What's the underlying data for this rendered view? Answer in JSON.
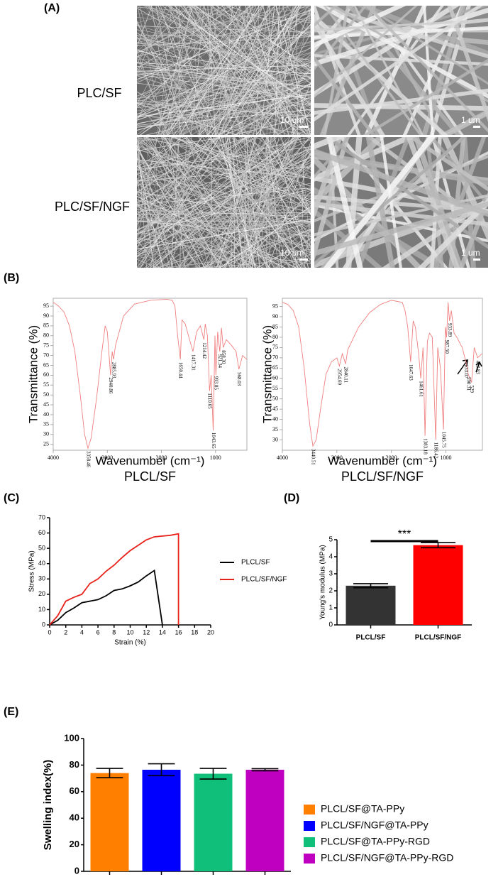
{
  "figure": {
    "panel_a": {
      "label": "(A)",
      "rows": [
        "PLC/SF",
        "PLC/SF/NGF"
      ],
      "scale_bars": [
        "10 um",
        "1 um",
        "10 um",
        "1 um"
      ]
    },
    "panel_labels": [
      "(B)",
      "(C)",
      "(D)",
      "(E)"
    ]
  },
  "chart_data": [
    {
      "type": "line",
      "frame": true,
      "subtitle": "PLCL/SF",
      "xlabel": "Wavenumber (cm⁻¹)",
      "ylabel": "Transmittance (%)",
      "xlim": [
        4000,
        420
      ],
      "ylim": [
        22,
        99
      ],
      "xticks": [
        4000,
        3000,
        2000,
        1000
      ],
      "yticks": [
        95,
        90,
        85,
        80,
        75,
        70,
        65,
        60,
        55,
        50,
        45,
        40,
        35,
        30,
        25
      ],
      "series": [
        {
          "color": "#f08080",
          "x": [
            4000,
            3900,
            3800,
            3700,
            3600,
            3500,
            3420,
            3358,
            3300,
            3200,
            3100,
            3040,
            3000,
            2940,
            2910,
            2885,
            2850,
            2700,
            2500,
            2200,
            1900,
            1800,
            1750,
            1700,
            1650,
            1620,
            1560,
            1500,
            1417,
            1350,
            1280,
            1214,
            1190,
            1150,
            1110,
            1080,
            1043,
            1010,
            993,
            960,
            921,
            890,
            858,
            800,
            700,
            620,
            568,
            500,
            420
          ],
          "values": [
            97,
            95,
            92,
            85,
            72,
            50,
            30,
            23,
            28,
            48,
            72,
            85,
            82,
            60,
            72,
            68,
            75,
            90,
            96,
            98,
            98.5,
            98,
            95,
            80,
            68,
            88,
            86,
            80,
            72,
            82,
            85,
            78,
            86,
            80,
            52,
            60,
            32,
            80,
            60,
            82,
            72,
            84,
            74,
            78,
            75,
            72,
            63,
            70,
            68
          ]
        }
      ],
      "peaks": [
        {
          "value": 3358.46,
          "label": "3358.46"
        },
        {
          "value": 2940.86,
          "label": "2940.86"
        },
        {
          "value": 2885.93,
          "label": "2885.93"
        },
        {
          "value": 1650.44,
          "label": "1650.44"
        },
        {
          "value": 1417.31,
          "label": "1417.31"
        },
        {
          "value": 1214.42,
          "label": "1214.42"
        },
        {
          "value": 1110.65,
          "label": "1110.65"
        },
        {
          "value": 1043.65,
          "label": "1043.65"
        },
        {
          "value": 993.85,
          "label": "993.85"
        },
        {
          "value": 921.34,
          "label": "921.34"
        },
        {
          "value": 858.3,
          "label": "858.30"
        },
        {
          "value": 568.03,
          "label": "568.03"
        }
      ]
    },
    {
      "type": "line",
      "frame": true,
      "subtitle": "PLCL/SF/NGF",
      "xlabel": "Wavenumber (cm⁻¹)",
      "ylabel": "Transmittance (%)",
      "xlim": [
        4000,
        330
      ],
      "ylim": [
        25,
        99
      ],
      "xticks": [
        4000,
        3000,
        2000,
        1000
      ],
      "yticks": [
        95,
        90,
        85,
        80,
        75,
        70,
        65,
        60,
        55,
        50,
        45,
        40,
        35,
        30
      ],
      "series": [
        {
          "color": "#f08080",
          "x": [
            4000,
            3900,
            3800,
            3700,
            3600,
            3500,
            3440,
            3380,
            3300,
            3200,
            3100,
            3000,
            2954,
            2900,
            2840,
            2800,
            2600,
            2400,
            2200,
            2000,
            1800,
            1750,
            1700,
            1647,
            1600,
            1560,
            1500,
            1461,
            1420,
            1383,
            1340,
            1300,
            1250,
            1186,
            1150,
            1100,
            1045,
            1010,
            987,
            960,
            933,
            900,
            850,
            800,
            700,
            633,
            590,
            529,
            480,
            418,
            340
          ],
          "values": [
            97,
            96,
            93,
            85,
            65,
            38,
            27,
            30,
            45,
            62,
            68,
            70,
            66,
            72,
            67,
            74,
            85,
            92,
            96,
            98,
            97,
            93,
            85,
            68,
            88,
            85,
            72,
            60,
            75,
            32,
            78,
            82,
            80,
            30,
            75,
            65,
            35,
            85,
            80,
            97,
            88,
            93,
            82,
            80,
            75,
            68,
            62,
            58,
            75,
            70,
            72
          ]
        }
      ],
      "peaks": [
        {
          "value": 3440.51,
          "label": "3440.51"
        },
        {
          "value": 2954.69,
          "label": "2954.69"
        },
        {
          "value": 2840.11,
          "label": "2840.11"
        },
        {
          "value": 1647.63,
          "label": "1647.63"
        },
        {
          "value": 1461.61,
          "label": "1461.61"
        },
        {
          "value": 1383.18,
          "label": "1383.18"
        },
        {
          "value": 1186.42,
          "label": "1186.42"
        },
        {
          "value": 1045.75,
          "label": "1045.75"
        },
        {
          "value": 987.5,
          "label": "987.50"
        },
        {
          "value": 933.89,
          "label": "933.89"
        },
        {
          "value": 633.07,
          "label": "633.07"
        },
        {
          "value": 590.31,
          "label": "590.31"
        },
        {
          "value": 529,
          "label": "529"
        },
        {
          "value": 418.83,
          "label": "418.83"
        }
      ]
    },
    {
      "type": "line",
      "frame": false,
      "xlabel": "Strain (%)",
      "ylabel": "Stress (MPa)",
      "legend": "right",
      "xlim": [
        0,
        20
      ],
      "ylim": [
        0,
        70
      ],
      "xticks": [
        0,
        2,
        4,
        6,
        8,
        10,
        12,
        14,
        16,
        18,
        20
      ],
      "yticks": [
        0,
        10,
        20,
        30,
        40,
        50,
        60,
        70
      ],
      "series": [
        {
          "name": "PLCL/SF",
          "color": "#000000",
          "x": [
            0,
            1,
            2,
            3,
            4,
            5,
            6,
            7,
            8,
            9,
            10,
            11,
            12,
            13,
            14
          ],
          "values": [
            0,
            3,
            8,
            11,
            14.5,
            15.5,
            16.5,
            19,
            22.5,
            23.5,
            25.5,
            28,
            32,
            35.5,
            0
          ]
        },
        {
          "name": "PLCL/SF/NGF",
          "color": "#e8201a",
          "x": [
            0,
            1,
            2,
            3,
            4,
            5,
            6,
            7,
            8,
            9,
            10,
            11,
            12,
            13,
            14,
            15,
            16,
            16
          ],
          "values": [
            0,
            6,
            15.5,
            18,
            20,
            27,
            30,
            35,
            39,
            44,
            48.5,
            52,
            55.5,
            57.5,
            58,
            58.5,
            59.5,
            0
          ]
        }
      ]
    },
    {
      "type": "bar",
      "ylabel": "Young's modulus (MPa)",
      "annotation": "***",
      "xtick_labels": true,
      "categories": [
        "PLCL/SF",
        "PLCL/SF/NGF"
      ],
      "values": [
        2.3,
        4.68
      ],
      "errors": [
        0.12,
        0.15
      ],
      "colors": [
        "#333333",
        "#ff0000"
      ],
      "ylim": [
        0,
        5
      ],
      "yticks": [
        0,
        1,
        2,
        3,
        4,
        5
      ]
    },
    {
      "type": "bar",
      "ylabel": "Swelling index(%)",
      "xtick_labels": false,
      "legend": "lower right",
      "categories": [
        "PLCL/SF@TA-PPy",
        "PLCL/SF/NGF@TA-PPy",
        "PLCL/SF@TA-PPy-RGD",
        "PLCL/SF/NGF@TA-PPy-RGD"
      ],
      "values": [
        74,
        76.5,
        73.5,
        76.5
      ],
      "errors": [
        3.5,
        4.5,
        4,
        0.8
      ],
      "colors": [
        "#ff8000",
        "#0000ff",
        "#10c07a",
        "#c000c0"
      ],
      "ylim": [
        0,
        100
      ],
      "yticks": [
        0,
        20,
        40,
        60,
        80,
        100
      ]
    }
  ]
}
